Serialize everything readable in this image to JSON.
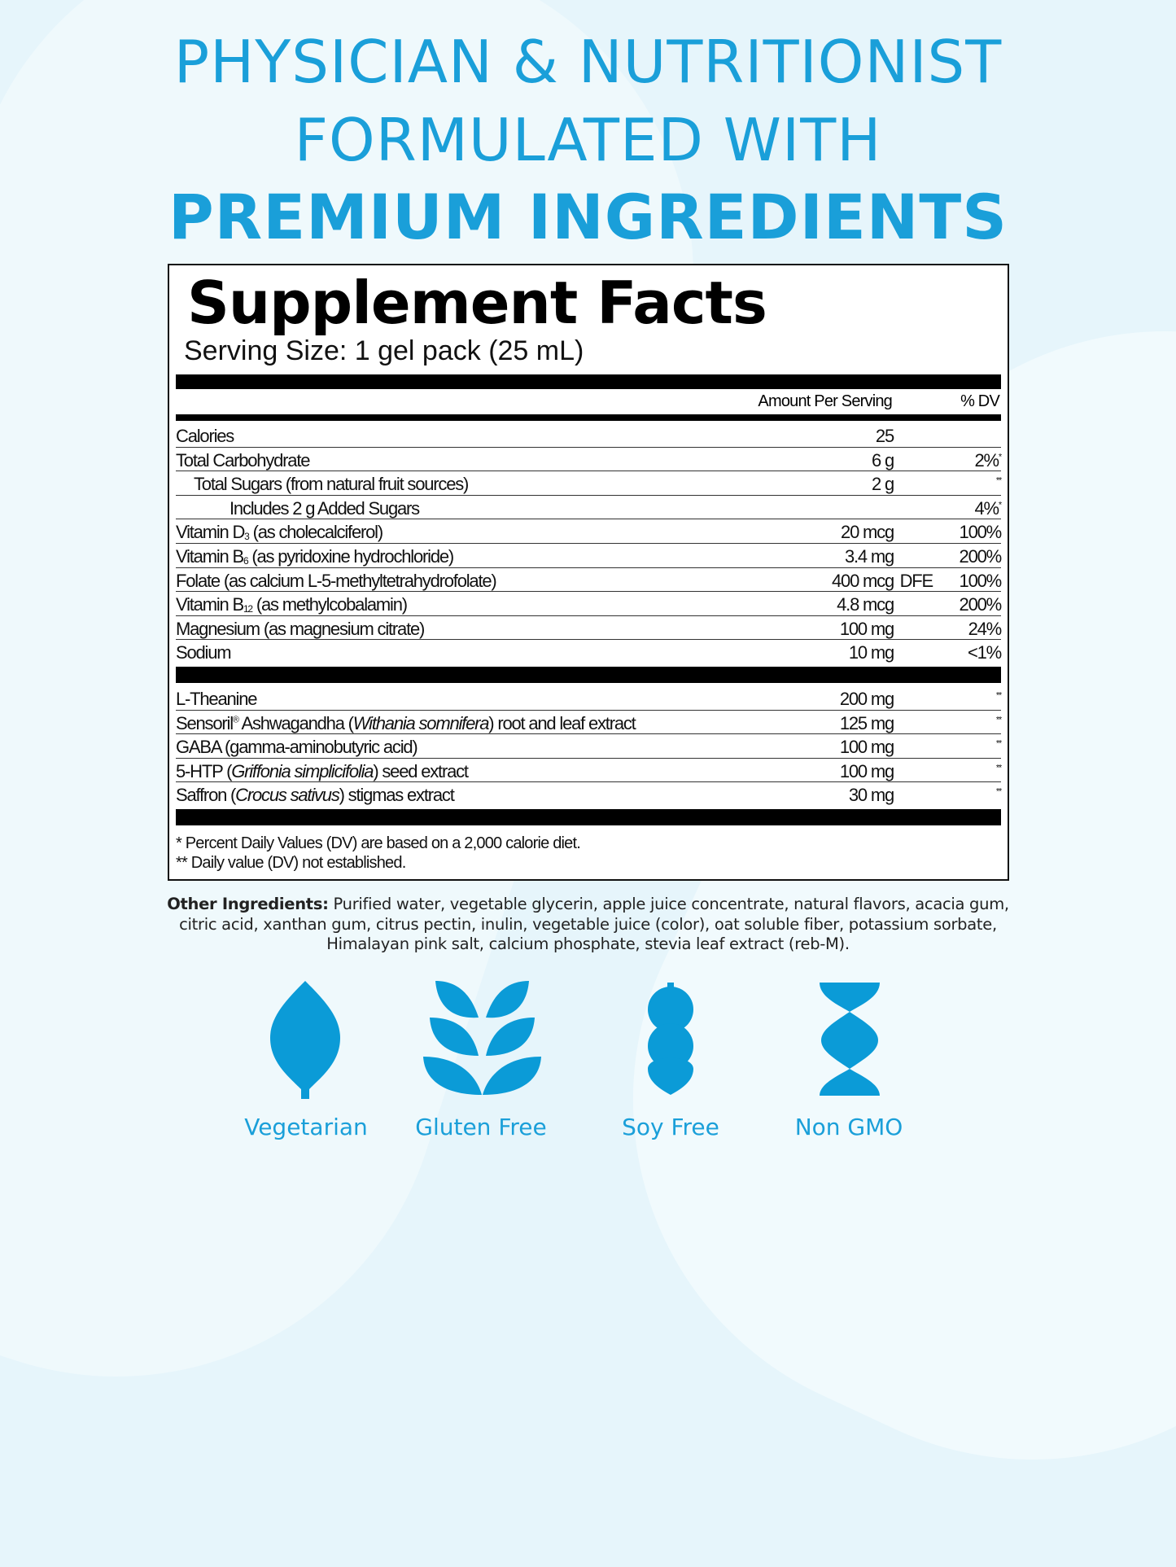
{
  "headline": {
    "line1": "PHYSICIAN & NUTRITIONIST",
    "line2": "FORMULATED WITH",
    "line3": "PREMIUM INGREDIENTS"
  },
  "facts": {
    "title": "Supplement Facts",
    "serving_size": "Serving Size: 1 gel pack (25 mL)",
    "col_amount": "Amount Per Serving",
    "col_dv": "% DV",
    "section1": [
      {
        "label": [
          {
            "t": "Calories"
          }
        ],
        "amount": "25",
        "dv": ""
      },
      {
        "label": [
          {
            "t": "Total Carbohydrate"
          }
        ],
        "amount": "6 g",
        "dv": "2%",
        "mark": "*"
      },
      {
        "label": [
          {
            "t": "Total Sugars (from natural fruit sources)"
          }
        ],
        "indent": 1,
        "amount": "2 g",
        "dv": "",
        "mark": "**"
      },
      {
        "label": [
          {
            "t": "Includes 2 g Added Sugars"
          }
        ],
        "indent": 2,
        "amount": "",
        "dv": "4%",
        "mark": "*"
      },
      {
        "label": [
          {
            "t": "Vitamin D"
          },
          {
            "t": "3",
            "s": "sub"
          },
          {
            "t": " (as cholecalciferol)"
          }
        ],
        "amount": "20 mcg",
        "dv": "100%"
      },
      {
        "label": [
          {
            "t": "Vitamin B"
          },
          {
            "t": "6",
            "s": "sub"
          },
          {
            "t": " (as pyridoxine hydrochloride)"
          }
        ],
        "amount": "3.4 mg",
        "dv": "200%"
      },
      {
        "label": [
          {
            "t": "Folate (as calcium L-5-methyltetrahydrofolate)"
          }
        ],
        "amount": "400 mcg",
        "unit": "DFE",
        "dv": "100%"
      },
      {
        "label": [
          {
            "t": "Vitamin B"
          },
          {
            "t": "12",
            "s": "sub"
          },
          {
            "t": " (as methylcobalamin)"
          }
        ],
        "amount": "4.8 mcg",
        "dv": "200%"
      },
      {
        "label": [
          {
            "t": "Magnesium (as magnesium citrate)"
          }
        ],
        "amount": "100 mg",
        "dv": "24%"
      },
      {
        "label": [
          {
            "t": "Sodium"
          }
        ],
        "amount": "10 mg",
        "dv": "<1%"
      }
    ],
    "section2": [
      {
        "label": [
          {
            "t": "L-Theanine"
          }
        ],
        "amount": "200 mg",
        "dv": "",
        "mark": "**"
      },
      {
        "label": [
          {
            "t": "Sensoril"
          },
          {
            "t": "®",
            "s": "sup"
          },
          {
            "t": " Ashwagandha ("
          },
          {
            "t": "Withania somnifera",
            "s": "i"
          },
          {
            "t": ") root and leaf extract"
          }
        ],
        "amount": "125 mg",
        "dv": "",
        "mark": "**"
      },
      {
        "label": [
          {
            "t": "GABA (gamma-aminobutyric acid)"
          }
        ],
        "amount": "100 mg",
        "dv": "",
        "mark": "**"
      },
      {
        "label": [
          {
            "t": "5-HTP ("
          },
          {
            "t": "Griffonia simplicifolia",
            "s": "i"
          },
          {
            "t": ") seed extract"
          }
        ],
        "amount": "100 mg",
        "dv": "",
        "mark": "**"
      },
      {
        "label": [
          {
            "t": "Saffron ("
          },
          {
            "t": "Crocus sativus",
            "s": "i"
          },
          {
            "t": ") stigmas extract"
          }
        ],
        "amount": "30 mg",
        "dv": "",
        "mark": "**"
      }
    ],
    "footnote1": "* Percent Daily Values (DV) are based on a 2,000 calorie diet.",
    "footnote2": "** Daily value (DV) not established."
  },
  "other_ingredients": {
    "label": "Other Ingredients:",
    "text": " Purified water, vegetable glycerin, apple juice concentrate, natural flavors, acacia gum, citric acid, xanthan gum, citrus pectin, inulin, vegetable juice (color), oat soluble fiber, potassium sorbate, Himalayan pink salt, calcium phosphate, stevia leaf extract (reb-M)."
  },
  "badges": [
    {
      "icon": "leaf-icon",
      "label": "Vegetarian"
    },
    {
      "icon": "wheat-icon",
      "label": "Gluten Free"
    },
    {
      "icon": "soybean-icon",
      "label": "Soy Free"
    },
    {
      "icon": "dna-icon",
      "label": "Non GMO"
    }
  ],
  "colors": {
    "accent": "#1a9fd9",
    "icon": "#0b9bd7"
  }
}
